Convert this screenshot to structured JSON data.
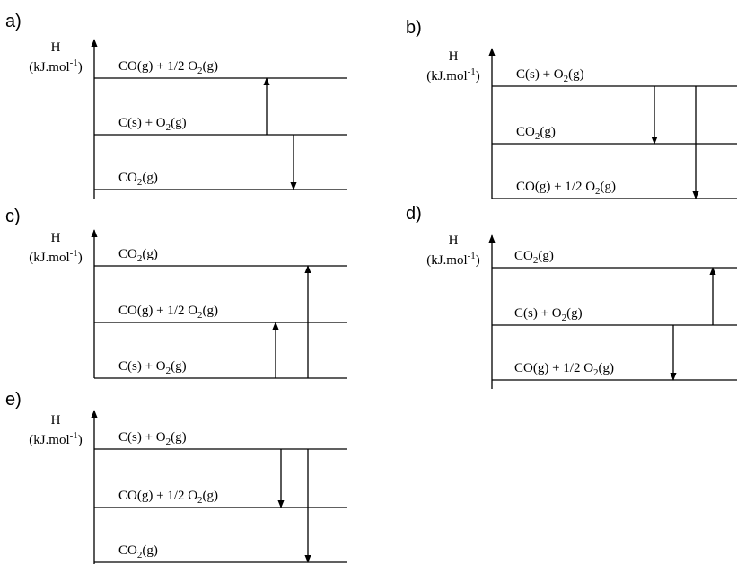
{
  "y_axis": {
    "symbol": "H",
    "unit_prefix": "(kJ.mol",
    "unit_exp": "-1",
    "unit_suffix": ")"
  },
  "species": {
    "co": {
      "main": "CO(g)  +  1/2 O",
      "sub": "2",
      "tail": "(g)"
    },
    "c": {
      "main": "C(s)  +  O",
      "sub": "2",
      "tail": "(g)"
    },
    "co2": {
      "main": "CO",
      "sub": "2",
      "tail": "(g)"
    }
  },
  "diagrams": [
    {
      "id": "a",
      "label": "a)",
      "levels_top_to_bottom": [
        "co",
        "c",
        "co2"
      ],
      "arrows": [
        {
          "from": "c",
          "to": "co",
          "direction": "up"
        },
        {
          "from": "c",
          "to": "co2",
          "direction": "down"
        }
      ]
    },
    {
      "id": "b",
      "label": "b)",
      "levels_top_to_bottom": [
        "c",
        "co2",
        "co"
      ],
      "arrows": [
        {
          "from": "c",
          "to": "co2",
          "direction": "down"
        },
        {
          "from": "c",
          "to": "co",
          "direction": "down"
        }
      ]
    },
    {
      "id": "c",
      "label": "c)",
      "levels_top_to_bottom": [
        "co2",
        "co",
        "c"
      ],
      "arrows": [
        {
          "from": "c",
          "to": "co",
          "direction": "up"
        },
        {
          "from": "c",
          "to": "co2",
          "direction": "up"
        }
      ]
    },
    {
      "id": "d",
      "label": "d)",
      "levels_top_to_bottom": [
        "co2",
        "c",
        "co"
      ],
      "arrows": [
        {
          "from": "c",
          "to": "co2",
          "direction": "up"
        },
        {
          "from": "c",
          "to": "co",
          "direction": "down"
        }
      ]
    },
    {
      "id": "e",
      "label": "e)",
      "levels_top_to_bottom": [
        "c",
        "co",
        "co2"
      ],
      "arrows": [
        {
          "from": "c",
          "to": "co",
          "direction": "down"
        },
        {
          "from": "c",
          "to": "co2",
          "direction": "down"
        }
      ]
    }
  ]
}
